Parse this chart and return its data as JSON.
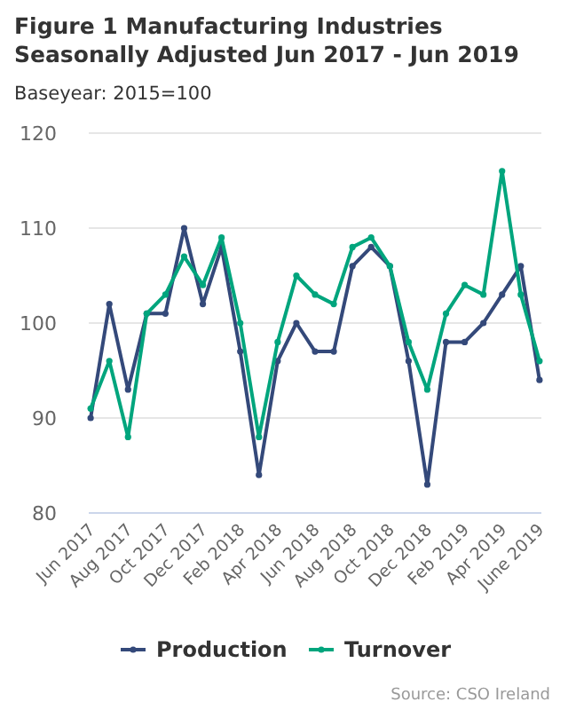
{
  "chart_data": {
    "type": "line",
    "title": "Figure 1 Manufacturing Industries Seasonally Adjusted Jun 2017 - Jun 2019",
    "subtitle": "Baseyear: 2015=100",
    "categories": [
      "Jun 2017",
      null,
      "Aug 2017",
      null,
      "Oct 2017",
      null,
      "Dec 2017",
      null,
      "Feb 2018",
      null,
      "Apr 2018",
      null,
      "Jun 2018",
      null,
      "Aug 2018",
      null,
      "Oct 2018",
      null,
      "Dec 2018",
      null,
      "Feb 2019",
      null,
      "Apr 2019",
      null,
      "June 2019"
    ],
    "series": [
      {
        "name": "Production",
        "color": "#34497a",
        "values": [
          90,
          102,
          93,
          101,
          101,
          110,
          102,
          108,
          97,
          84,
          96,
          100,
          97,
          97,
          106,
          108,
          106,
          96,
          83,
          98,
          98,
          100,
          103,
          106,
          94
        ]
      },
      {
        "name": "Turnover",
        "color": "#00a57d",
        "values": [
          91,
          96,
          88,
          101,
          103,
          107,
          104,
          109,
          100,
          88,
          98,
          105,
          103,
          102,
          108,
          109,
          106,
          98,
          93,
          101,
          104,
          103,
          116,
          103,
          96
        ]
      }
    ],
    "ylim": [
      80,
      120
    ],
    "yticks": [
      80,
      90,
      100,
      110,
      120
    ],
    "grid": "y",
    "legend": "bottom",
    "marker": "circle",
    "line_style": "solid",
    "annotations": [
      "Source: CSO Ireland"
    ]
  }
}
